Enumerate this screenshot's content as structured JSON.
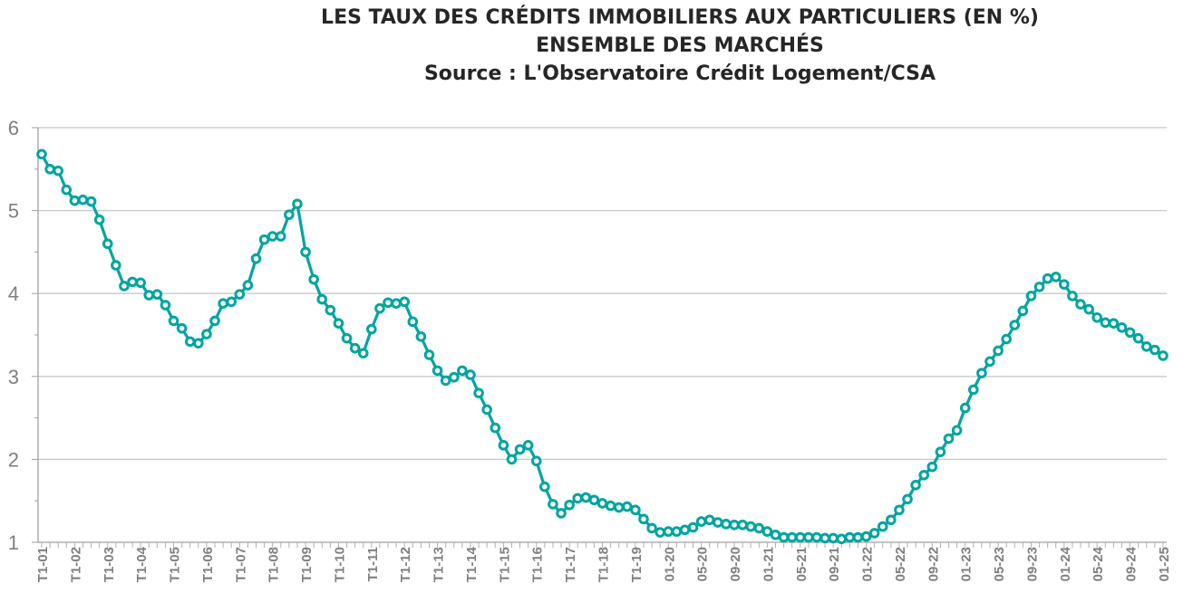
{
  "chart_data": {
    "type": "line",
    "title": [
      "LES TAUX DES CRÉDITS IMMOBILIERS AUX PARTICULIERS (EN %)",
      "ENSEMBLE DES MARCHÉS",
      "Source : L'Observatoire Crédit Logement/CSA"
    ],
    "xlabel": "",
    "ylabel": "",
    "ylim": [
      1,
      6
    ],
    "yticks": [
      "1",
      "2",
      "3",
      "4",
      "5",
      "6"
    ],
    "grid": true,
    "color": "#00a5a0",
    "quarterly_labels": [
      "T1-01",
      "T1-02",
      "T1-03",
      "T1-04",
      "T1-05",
      "T1-06",
      "T1-07",
      "T1-08",
      "T1-09",
      "T1-10",
      "T1-11",
      "T1-12",
      "T1-13",
      "T1-14",
      "T1-15",
      "T1-16",
      "T1-17",
      "T1-18",
      "T1-19"
    ],
    "monthly_labels": [
      "01-20",
      "05-20",
      "09-20",
      "01-21",
      "05-21",
      "09-21",
      "01-22",
      "05-22",
      "09-22",
      "01-23",
      "05-23",
      "09-23",
      "01-24",
      "05-24",
      "09-24",
      "01-25"
    ],
    "quarterly_values": [
      5.68,
      5.5,
      5.48,
      5.25,
      5.12,
      5.13,
      5.11,
      4.89,
      4.6,
      4.34,
      4.09,
      4.14,
      4.13,
      3.98,
      3.99,
      3.86,
      3.67,
      3.58,
      3.42,
      3.4,
      3.51,
      3.67,
      3.88,
      3.9,
      3.99,
      4.1,
      4.42,
      4.65,
      4.69,
      4.69,
      4.95,
      5.08,
      4.5,
      4.17,
      3.93,
      3.8,
      3.64,
      3.46,
      3.34,
      3.28,
      3.57,
      3.82,
      3.89,
      3.88,
      3.9,
      3.66,
      3.48,
      3.26,
      3.07,
      2.95,
      2.99,
      3.07,
      3.02,
      2.8,
      2.6,
      2.38,
      2.17,
      2.0,
      2.12,
      2.17,
      1.98,
      1.67,
      1.46,
      1.35,
      1.45,
      1.53,
      1.54,
      1.51,
      1.47,
      1.44,
      1.42,
      1.43,
      1.39,
      1.28,
      1.17,
      1.12
    ],
    "monthly_values": [
      1.13,
      1.13,
      1.15,
      1.18,
      1.25,
      1.27,
      1.24,
      1.22,
      1.21,
      1.21,
      1.19,
      1.17,
      1.13,
      1.09,
      1.06,
      1.06,
      1.06,
      1.06,
      1.06,
      1.05,
      1.05,
      1.04,
      1.06,
      1.06,
      1.07,
      1.11,
      1.19,
      1.27,
      1.39,
      1.52,
      1.69,
      1.81,
      1.91,
      2.09,
      2.25,
      2.35,
      2.62,
      2.84,
      3.04,
      3.18,
      3.31,
      3.45,
      3.62,
      3.79,
      3.97,
      4.08,
      4.18,
      4.2,
      4.11,
      3.97,
      3.87,
      3.81,
      3.71,
      3.65,
      3.64,
      3.59,
      3.53,
      3.46,
      3.36,
      3.32,
      3.25
    ]
  }
}
